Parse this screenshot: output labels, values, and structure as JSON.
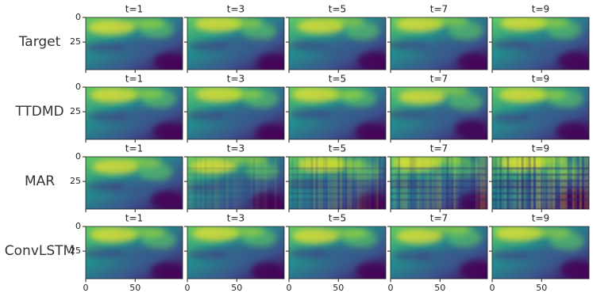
{
  "figure": {
    "columns": [
      "t=1",
      "t=3",
      "t=5",
      "t=7",
      "t=9"
    ],
    "rows": [
      "Target",
      "TTDMD",
      "MAR",
      "ConvLSTM"
    ],
    "xlim": [
      0,
      98
    ],
    "ylim": [
      0,
      53
    ],
    "xticks": [
      0,
      50
    ],
    "yticks": [
      0,
      25
    ]
  }
}
